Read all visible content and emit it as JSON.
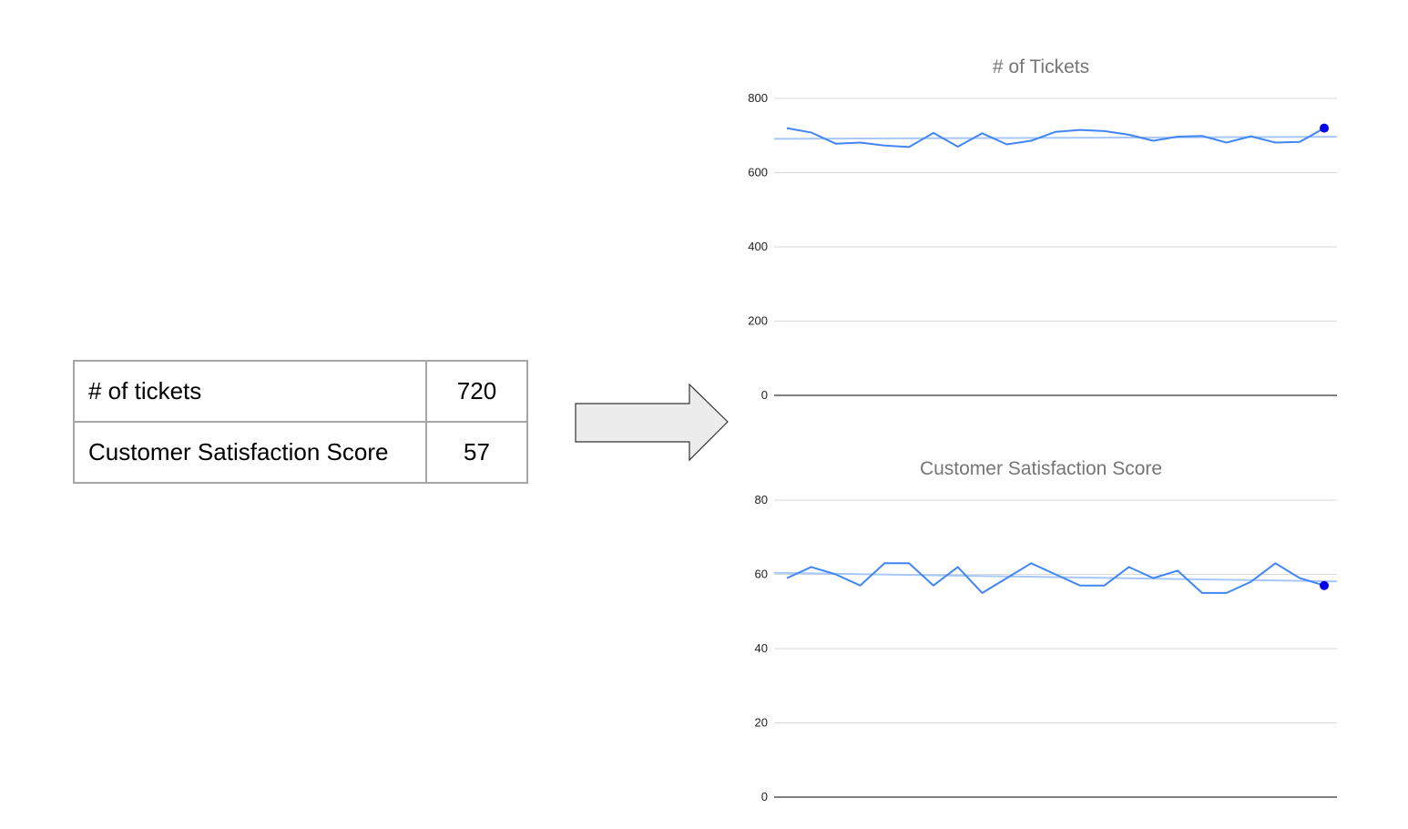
{
  "table": {
    "rows": [
      {
        "label": "# of tickets",
        "value": "720"
      },
      {
        "label": "Customer Satisfaction Score",
        "value": "57"
      }
    ]
  },
  "colors": {
    "line": "#4285f4",
    "trend": "#a8c7fa",
    "last_point": "#0000ee",
    "grid": "#d9d9d9",
    "baseline": "#333333",
    "table_border": "#a6a6a6",
    "arrow_fill": "#ececec"
  },
  "chart_data": [
    {
      "type": "line",
      "title": "# of Tickets",
      "xlabel": "",
      "ylabel": "",
      "ylim": [
        0,
        800
      ],
      "yticks": [
        "0",
        "200",
        "400",
        "600",
        "800"
      ],
      "grid": true,
      "trendline": true,
      "highlight": "last point",
      "series": [
        {
          "values": [
            720,
            708,
            678,
            681,
            673,
            669,
            707,
            670,
            706,
            676,
            686,
            710,
            715,
            712,
            702,
            686,
            697,
            699,
            681,
            698,
            681,
            683,
            720
          ]
        }
      ]
    },
    {
      "type": "line",
      "title": "Customer Satisfaction Score",
      "xlabel": "",
      "ylabel": "",
      "ylim": [
        0,
        80
      ],
      "yticks": [
        "0",
        "20",
        "40",
        "60",
        "80"
      ],
      "grid": true,
      "trendline": true,
      "highlight": "last point",
      "series": [
        {
          "values": [
            59,
            62,
            60,
            57,
            63,
            63,
            57,
            62,
            55,
            59,
            63,
            60,
            57,
            57,
            62,
            59,
            61,
            55,
            55,
            58,
            63,
            59,
            57
          ]
        }
      ]
    }
  ]
}
